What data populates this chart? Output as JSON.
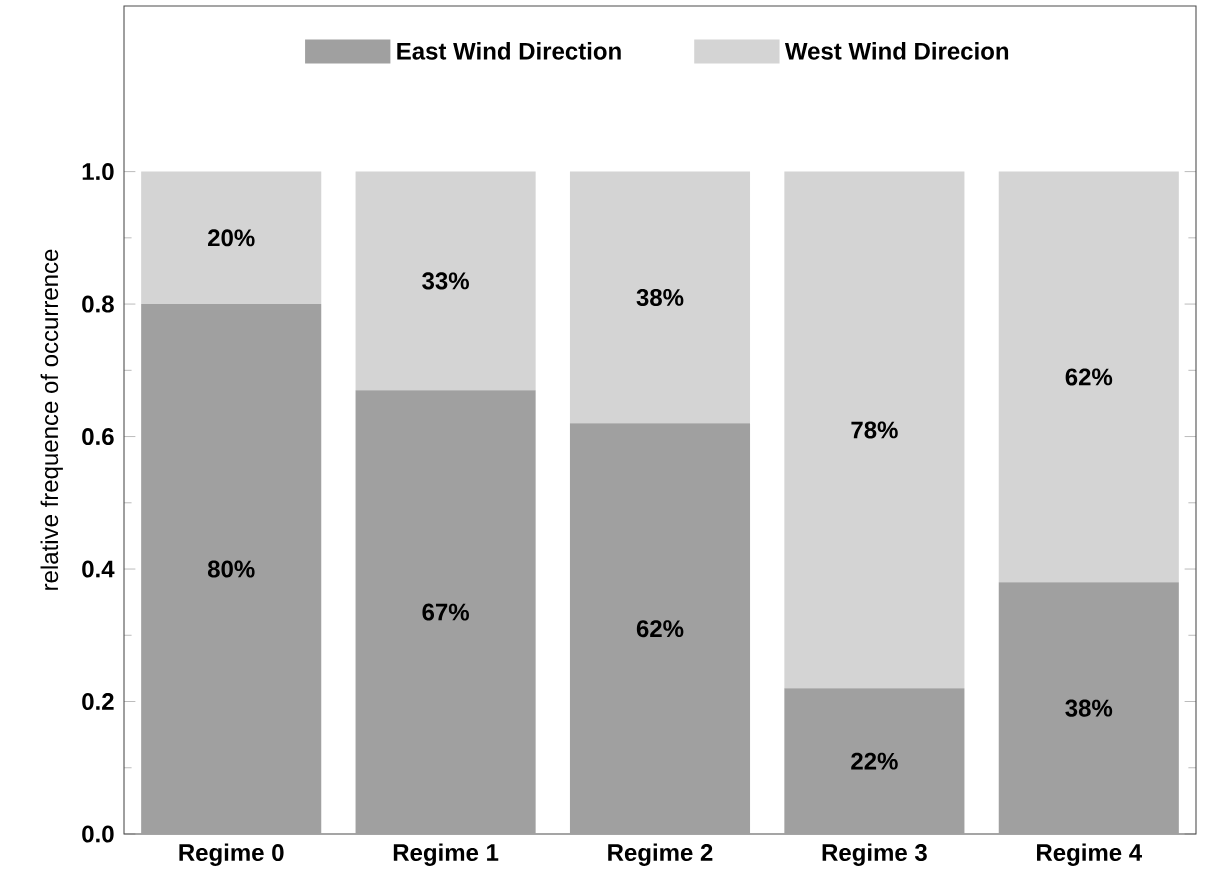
{
  "chart_data": {
    "type": "bar",
    "stacked": true,
    "ylabel": "relative frequence of occurrence",
    "categories": [
      "Regime 0",
      "Regime 1",
      "Regime 2",
      "Regime 3",
      "Regime 4"
    ],
    "series": [
      {
        "name": "East Wind Direction",
        "color": "#a0a0a0",
        "values": [
          0.8,
          0.67,
          0.62,
          0.22,
          0.38
        ],
        "value_labels": [
          "80%",
          "67%",
          "62%",
          "22%",
          "38%"
        ]
      },
      {
        "name": "West Wind Direcion",
        "color": "#d4d4d4",
        "values": [
          0.2,
          0.33,
          0.38,
          0.78,
          0.62
        ],
        "value_labels": [
          "20%",
          "33%",
          "38%",
          "78%",
          "62%"
        ]
      }
    ],
    "ylim": [
      0,
      1.25
    ],
    "yticks": [
      {
        "value": 0,
        "label": "0.0"
      },
      {
        "value": 0.2,
        "label": "0.2"
      },
      {
        "value": 0.4,
        "label": "0.4"
      },
      {
        "value": 0.6,
        "label": "0.6"
      },
      {
        "value": 0.8,
        "label": "0.8"
      },
      {
        "value": 1.0,
        "label": "1.0"
      }
    ],
    "legend": "top",
    "grid": false
  }
}
